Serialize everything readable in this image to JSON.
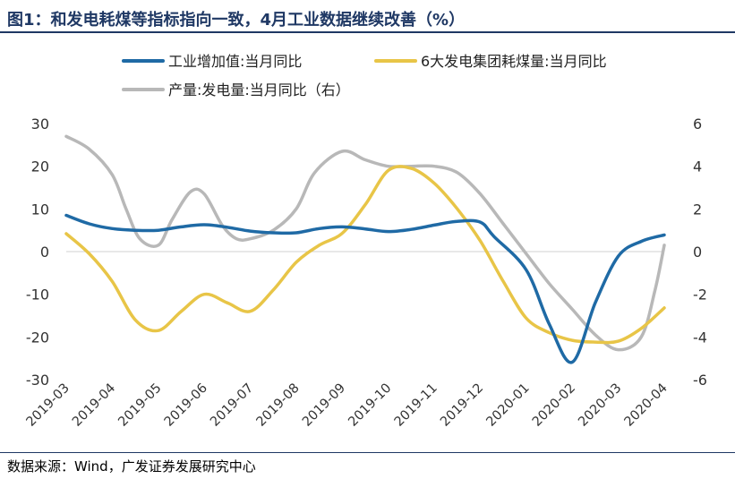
{
  "title": "图1：和发电耗煤等指标指向一致，4月工业数据继续改善（%）",
  "source": "数据来源：Wind，广发证券发展研究中心",
  "chart_data": {
    "type": "line",
    "categories": [
      "2019-03",
      "2019-04",
      "2019-05",
      "2019-06",
      "2019-07",
      "2019-08",
      "2019-09",
      "2019-10",
      "2019-11",
      "2019-12",
      "2020-01",
      "2020-02",
      "2020-03",
      "2020-04"
    ],
    "left_axis": {
      "ylim": [
        -30,
        30
      ],
      "ticks": [
        30,
        20,
        10,
        0,
        -10,
        -20,
        -30
      ]
    },
    "right_axis": {
      "ylim": [
        -6,
        6
      ],
      "ticks": [
        6,
        4,
        2,
        0,
        -2,
        -4,
        -6
      ]
    },
    "series": [
      {
        "name": "工业增加值:当月同比",
        "axis": "left",
        "color": "#1f6aa5",
        "points": [
          [
            0,
            8.5
          ],
          [
            0.5,
            6.5
          ],
          [
            1,
            5.4
          ],
          [
            1.5,
            5.0
          ],
          [
            2,
            5.0
          ],
          [
            2.5,
            5.8
          ],
          [
            3,
            6.3
          ],
          [
            3.5,
            5.7
          ],
          [
            4,
            4.8
          ],
          [
            4.5,
            4.4
          ],
          [
            5,
            4.4
          ],
          [
            5.5,
            5.4
          ],
          [
            6,
            5.8
          ],
          [
            6.5,
            5.3
          ],
          [
            7,
            4.7
          ],
          [
            7.5,
            5.2
          ],
          [
            8,
            6.2
          ],
          [
            8.5,
            7.1
          ],
          [
            9,
            6.9
          ],
          [
            9.3,
            3.5
          ],
          [
            10,
            -4.3
          ],
          [
            10.5,
            -17
          ],
          [
            11,
            -25.9
          ],
          [
            11.5,
            -12
          ],
          [
            12,
            -1.1
          ],
          [
            12.5,
            2.4
          ],
          [
            13,
            3.9
          ]
        ]
      },
      {
        "name": "6大发电集团耗煤量:当月同比",
        "axis": "left",
        "color": "#e8c547",
        "points": [
          [
            0,
            4.2
          ],
          [
            0.5,
            -0.5
          ],
          [
            1,
            -7
          ],
          [
            1.5,
            -16
          ],
          [
            2,
            -18.5
          ],
          [
            2.5,
            -14
          ],
          [
            3,
            -10
          ],
          [
            3.5,
            -12
          ],
          [
            4,
            -14
          ],
          [
            4.5,
            -9
          ],
          [
            5,
            -2.5
          ],
          [
            5.5,
            1.5
          ],
          [
            6,
            4.3
          ],
          [
            6.5,
            11
          ],
          [
            7,
            19
          ],
          [
            7.5,
            19.5
          ],
          [
            8,
            16
          ],
          [
            8.5,
            10
          ],
          [
            9,
            2.5
          ],
          [
            9.5,
            -7
          ],
          [
            10,
            -15.6
          ],
          [
            10.5,
            -19
          ],
          [
            11,
            -20.8
          ],
          [
            11.5,
            -21.2
          ],
          [
            12,
            -21.0
          ],
          [
            12.5,
            -18
          ],
          [
            13,
            -13.2
          ]
        ]
      },
      {
        "name": "产量:发电量:当月同比（右）",
        "axis": "right",
        "color": "#b8b8b8",
        "points": [
          [
            0,
            5.4
          ],
          [
            0.5,
            4.8
          ],
          [
            1,
            3.6
          ],
          [
            1.3,
            2.0
          ],
          [
            1.6,
            0.6
          ],
          [
            2,
            0.3
          ],
          [
            2.3,
            1.5
          ],
          [
            2.7,
            2.8
          ],
          [
            3,
            2.7
          ],
          [
            3.4,
            1.2
          ],
          [
            3.7,
            0.6
          ],
          [
            4,
            0.6
          ],
          [
            4.5,
            1.0
          ],
          [
            5,
            2.0
          ],
          [
            5.4,
            3.7
          ],
          [
            6,
            4.7
          ],
          [
            6.5,
            4.3
          ],
          [
            7,
            4.0
          ],
          [
            7.5,
            4.0
          ],
          [
            8,
            4.0
          ],
          [
            8.5,
            3.7
          ],
          [
            9,
            2.7
          ],
          [
            9.5,
            1.3
          ],
          [
            10,
            -0.1
          ],
          [
            10.5,
            -1.5
          ],
          [
            11,
            -2.7
          ],
          [
            11.5,
            -3.9
          ],
          [
            12,
            -4.6
          ],
          [
            12.5,
            -4.0
          ],
          [
            12.8,
            -1.8
          ],
          [
            13,
            0.3
          ]
        ]
      }
    ],
    "legend": [
      {
        "label": "工业增加值:当月同比",
        "color": "#1f6aa5"
      },
      {
        "label": "6大发电集团耗煤量:当月同比",
        "color": "#e8c547"
      },
      {
        "label": "产量:发电量:当月同比（右）",
        "color": "#b8b8b8"
      }
    ]
  }
}
